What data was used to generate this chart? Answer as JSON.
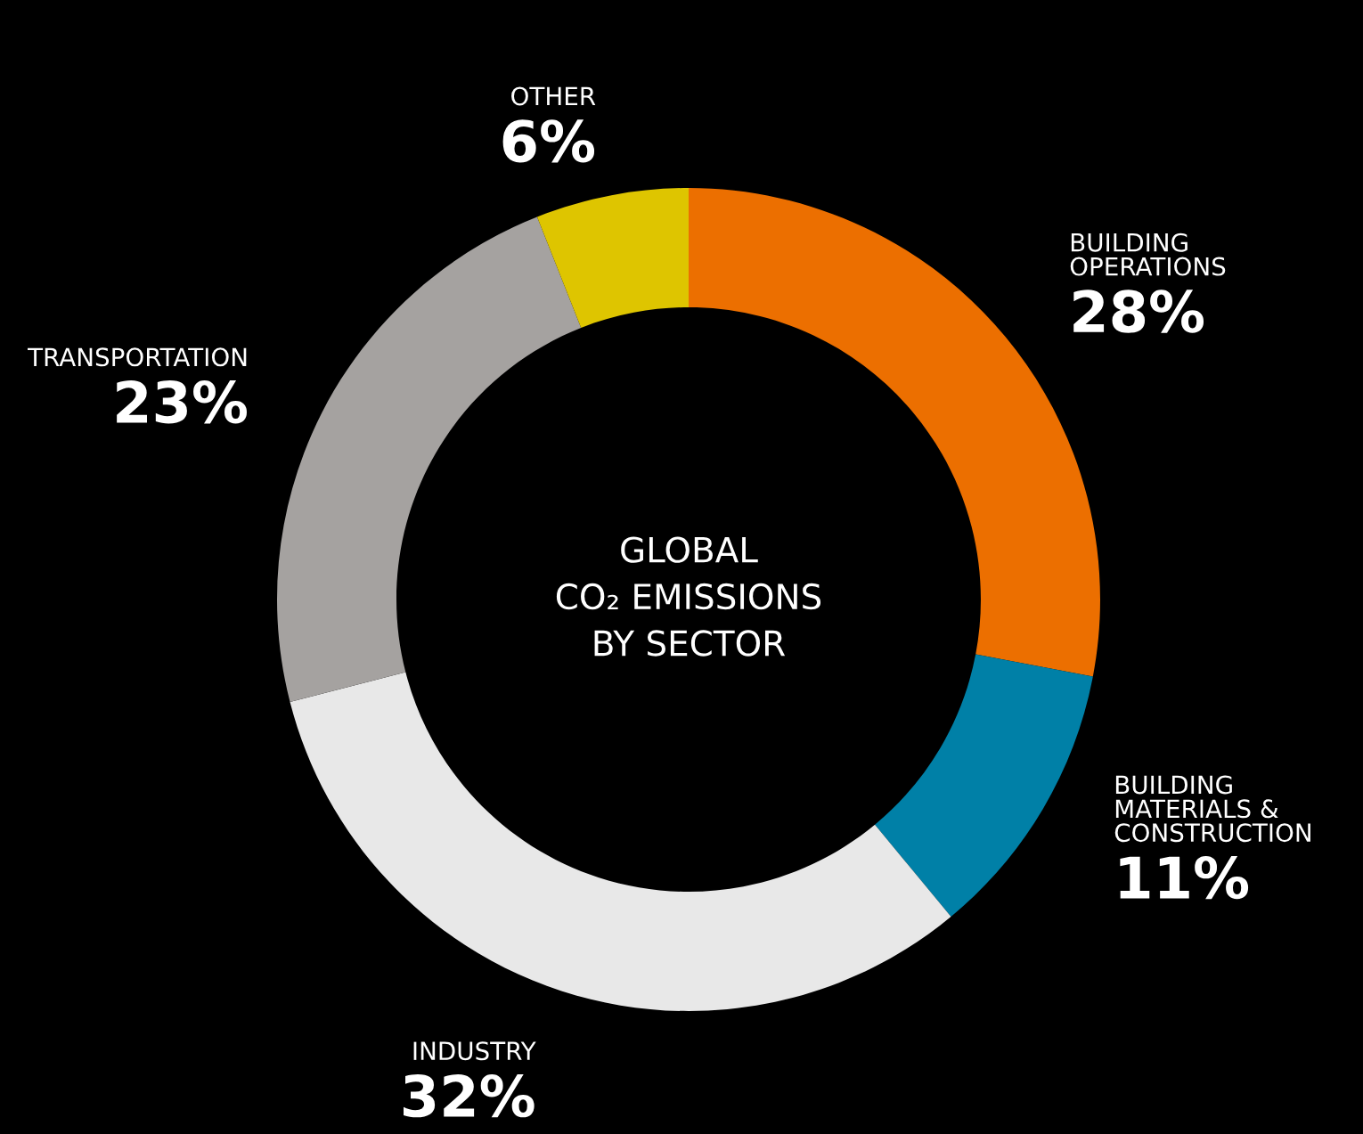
{
  "chart_data": {
    "type": "donut",
    "title": "GLOBAL\nCO₂ EMISSIONS\nBY SECTOR",
    "categories": [
      "BUILDING\nOPERATIONS",
      "BUILDING\nMATERIALS &\nCONSTRUCTION",
      "INDUSTRY",
      "TRANSPORTATION",
      "OTHER"
    ],
    "values": [
      28,
      11,
      32,
      23,
      6
    ],
    "value_labels": [
      "28%",
      "11%",
      "32%",
      "23%",
      "6%"
    ],
    "colors": [
      "#ec6f00",
      "#0080a7",
      "#e8e8e8",
      "#a5a2a0",
      "#dec500"
    ]
  }
}
